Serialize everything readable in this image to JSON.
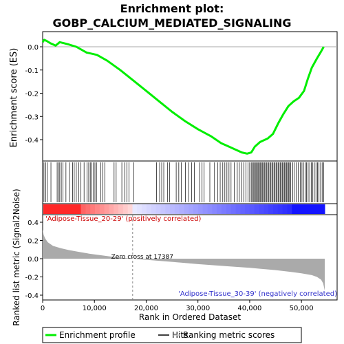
{
  "title_line1": "Enrichment plot:",
  "title_line2": "GOBP_CALCIUM_MEDIATED_SIGNALING",
  "es_ylabel": "Enrichment score (ES)",
  "metric_ylabel": "Ranked list metric (Signal2Noise)",
  "xlabel": "Rank in Ordered Dataset",
  "pos_label": "'Adipose-Tissue_20-29' (positively correlated)",
  "neg_label": "'Adipose-Tissue_30-39' (negatively correlated)",
  "zero_cross_label": "Zero cross at 17387",
  "legend": {
    "enrichment": "Enrichment profile",
    "hits": "Hits",
    "ranking": "Ranking metric scores"
  },
  "colors": {
    "enrichment": "#00ee00",
    "hits": "#000000",
    "metric": "#aaaaaa",
    "positive": "#ff0000",
    "negative": "#0000ff"
  },
  "chart_data": {
    "type": "line",
    "x_range": [
      0,
      54500
    ],
    "es_ylim": [
      -0.5,
      0.05
    ],
    "es_yticks": [
      0.0,
      -0.1,
      -0.2,
      -0.3,
      -0.4
    ],
    "es_ytick_labels": [
      "0.0",
      "-0.1",
      "-0.2",
      "-0.3",
      "-0.4"
    ],
    "metric_ylim": [
      -0.45,
      0.45
    ],
    "metric_yticks": [
      0.4,
      0.2,
      0.0,
      -0.2,
      -0.4
    ],
    "metric_ytick_labels": [
      "0.4",
      "0.2",
      "0.0",
      "-0.2",
      "-0.4"
    ],
    "xticks": [
      0,
      10000,
      20000,
      30000,
      40000,
      50000
    ],
    "xtick_labels": [
      "0",
      "10,000",
      "20,000",
      "30,000",
      "40,000",
      "50,000"
    ],
    "zero_cross": 17387,
    "enrichment_profile": {
      "x": [
        0,
        300,
        800,
        1500,
        2500,
        3300,
        4200,
        5000,
        6500,
        8500,
        10500,
        12500,
        15000,
        17500,
        20000,
        22500,
        25000,
        27500,
        30000,
        32500,
        34500,
        36000,
        37500,
        38500,
        39500,
        40300,
        41000,
        42000,
        43500,
        44500,
        45500,
        46500,
        47500,
        48500,
        49500,
        50500,
        51200,
        52000,
        53000,
        53800,
        54300
      ],
      "y": [
        0.02,
        0.03,
        0.025,
        0.015,
        0.005,
        0.02,
        0.015,
        0.01,
        0.0,
        -0.025,
        -0.035,
        -0.06,
        -0.1,
        -0.145,
        -0.19,
        -0.235,
        -0.28,
        -0.32,
        -0.355,
        -0.385,
        -0.415,
        -0.43,
        -0.445,
        -0.455,
        -0.46,
        -0.455,
        -0.43,
        -0.41,
        -0.395,
        -0.375,
        -0.33,
        -0.29,
        -0.255,
        -0.235,
        -0.22,
        -0.19,
        -0.14,
        -0.09,
        -0.05,
        -0.02,
        0.0
      ]
    },
    "metric_profile": {
      "x": [
        0,
        200,
        500,
        1000,
        2000,
        3500,
        5000,
        7000,
        9000,
        11000,
        13000,
        15000,
        17387,
        20000,
        25000,
        30000,
        35000,
        40000,
        45000,
        48000,
        50000,
        52000,
        53000,
        53800,
        54200,
        54500
      ],
      "y": [
        0.32,
        0.26,
        0.22,
        0.18,
        0.14,
        0.115,
        0.095,
        0.075,
        0.055,
        0.04,
        0.025,
        0.012,
        0.0,
        -0.012,
        -0.035,
        -0.06,
        -0.08,
        -0.1,
        -0.125,
        -0.145,
        -0.16,
        -0.18,
        -0.2,
        -0.23,
        -0.27,
        -0.35
      ]
    },
    "hits": [
      250,
      600,
      900,
      1600,
      2800,
      3050,
      3300,
      3600,
      3900,
      4500,
      5200,
      5800,
      6100,
      6500,
      7000,
      7400,
      8000,
      8600,
      8900,
      9200,
      9500,
      9800,
      10100,
      10400,
      11200,
      11600,
      12000,
      13800,
      14200,
      15300,
      15900,
      16300,
      16700,
      17600,
      22000,
      22600,
      23000,
      23400,
      24100,
      24500,
      25800,
      26300,
      26800,
      27600,
      28200,
      28800,
      29300,
      30300,
      30800,
      31200,
      32300,
      33200,
      33800,
      34300,
      34800,
      35200,
      35600,
      36000,
      36400,
      37000,
      37600,
      38000,
      38500,
      38900,
      39300,
      39700,
      40000,
      40300,
      40500,
      40700,
      40900,
      41100,
      41300,
      41500,
      41700,
      41900,
      42100,
      42300,
      42500,
      42700,
      42900,
      43100,
      43300,
      43500,
      43700,
      43900,
      44100,
      44300,
      44500,
      44700,
      44900,
      45100,
      45300,
      45500,
      45700,
      45900,
      46100,
      46300,
      46500,
      46700,
      46900,
      47100,
      47300,
      47500,
      47700,
      47900,
      48300,
      48600,
      49000,
      49400,
      49800,
      50100,
      50400,
      50700,
      51000,
      51300,
      51600,
      51900,
      52200,
      52500,
      52800,
      53100,
      53400,
      53700,
      54000,
      54300
    ]
  }
}
